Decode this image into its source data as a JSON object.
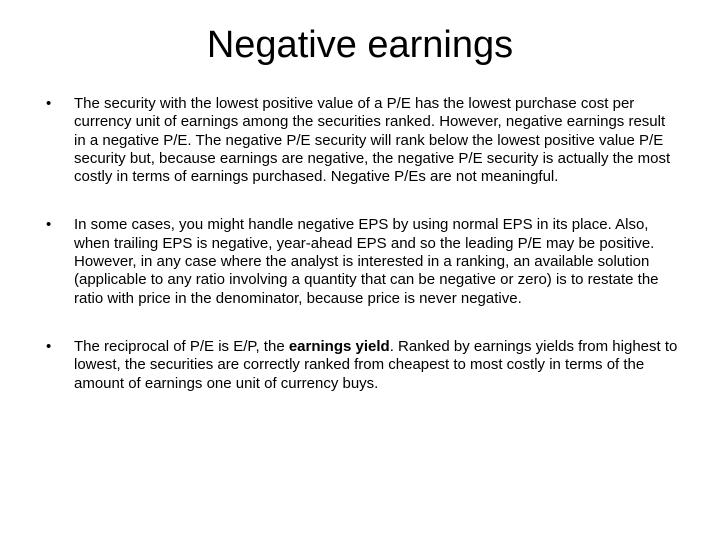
{
  "slide": {
    "title": "Negative earnings",
    "bullets": [
      {
        "html": "The security with the lowest positive value of a P/E has the lowest purchase cost per currency unit of earnings among the securities ranked. However, negative earnings result in a negative P/E. The negative P/E security will rank below the lowest positive value P/E security but, because earnings are negative, the negative P/E security is actually the most costly in terms of earnings purchased.  Negative P/Es are not meaningful."
      },
      {
        "html": "In some cases, you might handle negative EPS by using normal EPS in its place. Also, when trailing EPS is negative, year-ahead EPS and so the leading P/E may be positive. However, in any case where the analyst is interested in a ranking, an available solution (applicable to any ratio involving a quantity that can be negative or zero) is to restate the ratio with price in the denominator, because price is never negative."
      },
      {
        "html": "The reciprocal of P/E is E/P, the <span class=\"b\">earnings yield</span>. Ranked by earnings yields from highest to lowest, the securities are correctly ranked from cheapest to most costly in terms of the amount of earnings one unit of currency buys."
      }
    ]
  }
}
